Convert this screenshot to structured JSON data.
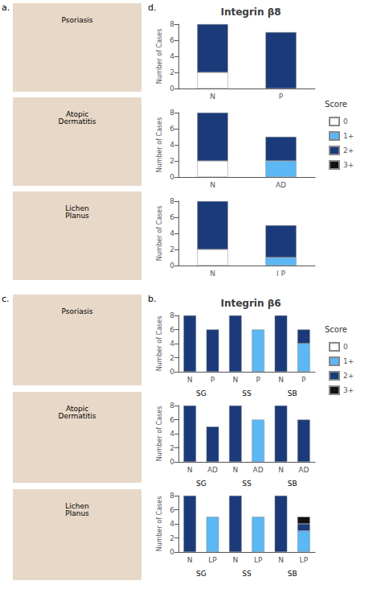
{
  "chart_data": [
    {
      "type": "bar",
      "stacked": true,
      "title": "Integrin β6",
      "ylabel": "Number of Cases",
      "categories": [
        "N",
        "P",
        "N",
        "P",
        "N",
        "P"
      ],
      "groups": [
        "SG",
        "SS",
        "SB"
      ],
      "series": [
        {
          "name": "0",
          "color": "#ffffff",
          "values": [
            0,
            0,
            0,
            0,
            0,
            0
          ]
        },
        {
          "name": "1+",
          "color": "#5bb8f5",
          "values": [
            0,
            0,
            0,
            6,
            0,
            4
          ]
        },
        {
          "name": "2+",
          "color": "#1a3a7a",
          "values": [
            8,
            6,
            8,
            0,
            8,
            2
          ]
        },
        {
          "name": "3+",
          "color": "#111111",
          "values": [
            0,
            0,
            0,
            0,
            0,
            0
          ]
        }
      ],
      "ylim": [
        0,
        8
      ],
      "yticks": [
        0,
        2,
        4,
        6,
        8
      ],
      "grid": false,
      "legend": "right",
      "legend_title": "Score",
      "annotations": [
        "c.",
        "b.",
        "Psoriasis"
      ]
    },
    {
      "type": "bar",
      "stacked": true,
      "ylabel": "Number of Cases",
      "categories": [
        "N",
        "AD",
        "N",
        "AD",
        "N",
        "AD"
      ],
      "groups": [
        "SG",
        "SS",
        "SB"
      ],
      "series": [
        {
          "name": "0",
          "color": "#ffffff",
          "values": [
            0,
            0,
            0,
            0,
            0,
            0
          ]
        },
        {
          "name": "1+",
          "color": "#5bb8f5",
          "values": [
            0,
            0,
            0,
            6,
            0,
            0
          ]
        },
        {
          "name": "2+",
          "color": "#1a3a7a",
          "values": [
            8,
            5,
            8,
            0,
            8,
            6
          ]
        },
        {
          "name": "3+",
          "color": "#111111",
          "values": [
            0,
            0,
            0,
            0,
            0,
            0
          ]
        }
      ],
      "ylim": [
        0,
        8
      ],
      "yticks": [
        0,
        2,
        4,
        6,
        8
      ],
      "grid": false,
      "annotations": [
        "Atopic\nDermatitis"
      ]
    },
    {
      "type": "bar",
      "stacked": true,
      "ylabel": "Number of Cases",
      "categories": [
        "N",
        "LP",
        "N",
        "LP",
        "N",
        "LP"
      ],
      "groups": [
        "SG",
        "SS",
        "SB"
      ],
      "series": [
        {
          "name": "0",
          "color": "#ffffff",
          "values": [
            0,
            0,
            0,
            0,
            0,
            0
          ]
        },
        {
          "name": "1+",
          "color": "#5bb8f5",
          "values": [
            0,
            5,
            0,
            5,
            0,
            3
          ]
        },
        {
          "name": "2+",
          "color": "#1a3a7a",
          "values": [
            8,
            0,
            8,
            0,
            8,
            1
          ]
        },
        {
          "name": "3+",
          "color": "#111111",
          "values": [
            0,
            0,
            0,
            0,
            0,
            1
          ]
        }
      ],
      "ylim": [
        0,
        8
      ],
      "yticks": [
        0,
        2,
        4,
        6,
        8
      ],
      "grid": false,
      "annotations": [
        "Lichen\nPlanus"
      ]
    },
    {
      "type": "bar",
      "stacked": true,
      "title": "Integrin β8",
      "ylabel": "Number of Cases",
      "categories": [
        "N",
        "P"
      ],
      "series": [
        {
          "name": "0",
          "color": "#ffffff",
          "values": [
            2,
            0
          ]
        },
        {
          "name": "1+",
          "color": "#5bb8f5",
          "values": [
            0,
            0
          ]
        },
        {
          "name": "2+",
          "color": "#1a3a7a",
          "values": [
            6,
            7
          ]
        },
        {
          "name": "3+",
          "color": "#111111",
          "values": [
            0,
            0
          ]
        }
      ],
      "ylim": [
        0,
        8
      ],
      "yticks": [
        0,
        2,
        4,
        6,
        8
      ],
      "grid": false,
      "legend": "right",
      "legend_title": "Score",
      "annotations": [
        "a.",
        "d.",
        "Psoriasis"
      ]
    },
    {
      "type": "bar",
      "stacked": true,
      "ylabel": "Number of Cases",
      "categories": [
        "N",
        "AD"
      ],
      "series": [
        {
          "name": "0",
          "color": "#ffffff",
          "values": [
            2,
            0
          ]
        },
        {
          "name": "1+",
          "color": "#5bb8f5",
          "values": [
            0,
            2
          ]
        },
        {
          "name": "2+",
          "color": "#1a3a7a",
          "values": [
            6,
            3
          ]
        },
        {
          "name": "3+",
          "color": "#111111",
          "values": [
            0,
            0
          ]
        }
      ],
      "ylim": [
        0,
        8
      ],
      "yticks": [
        0,
        2,
        4,
        6,
        8
      ],
      "grid": false,
      "annotations": [
        "Atopic\nDermatitis"
      ]
    },
    {
      "type": "bar",
      "stacked": true,
      "ylabel": "Number of Cases",
      "categories": [
        "N",
        "l P"
      ],
      "series": [
        {
          "name": "0",
          "color": "#ffffff",
          "values": [
            2,
            0
          ]
        },
        {
          "name": "1+",
          "color": "#5bb8f5",
          "values": [
            0,
            1
          ]
        },
        {
          "name": "2+",
          "color": "#1a3a7a",
          "values": [
            6,
            4
          ]
        },
        {
          "name": "3+",
          "color": "#111111",
          "values": [
            0,
            0
          ]
        }
      ],
      "ylim": [
        0,
        8
      ],
      "yticks": [
        0,
        2,
        4,
        6,
        8
      ],
      "grid": false,
      "annotations": [
        "Lichen\nPlanus"
      ]
    }
  ]
}
